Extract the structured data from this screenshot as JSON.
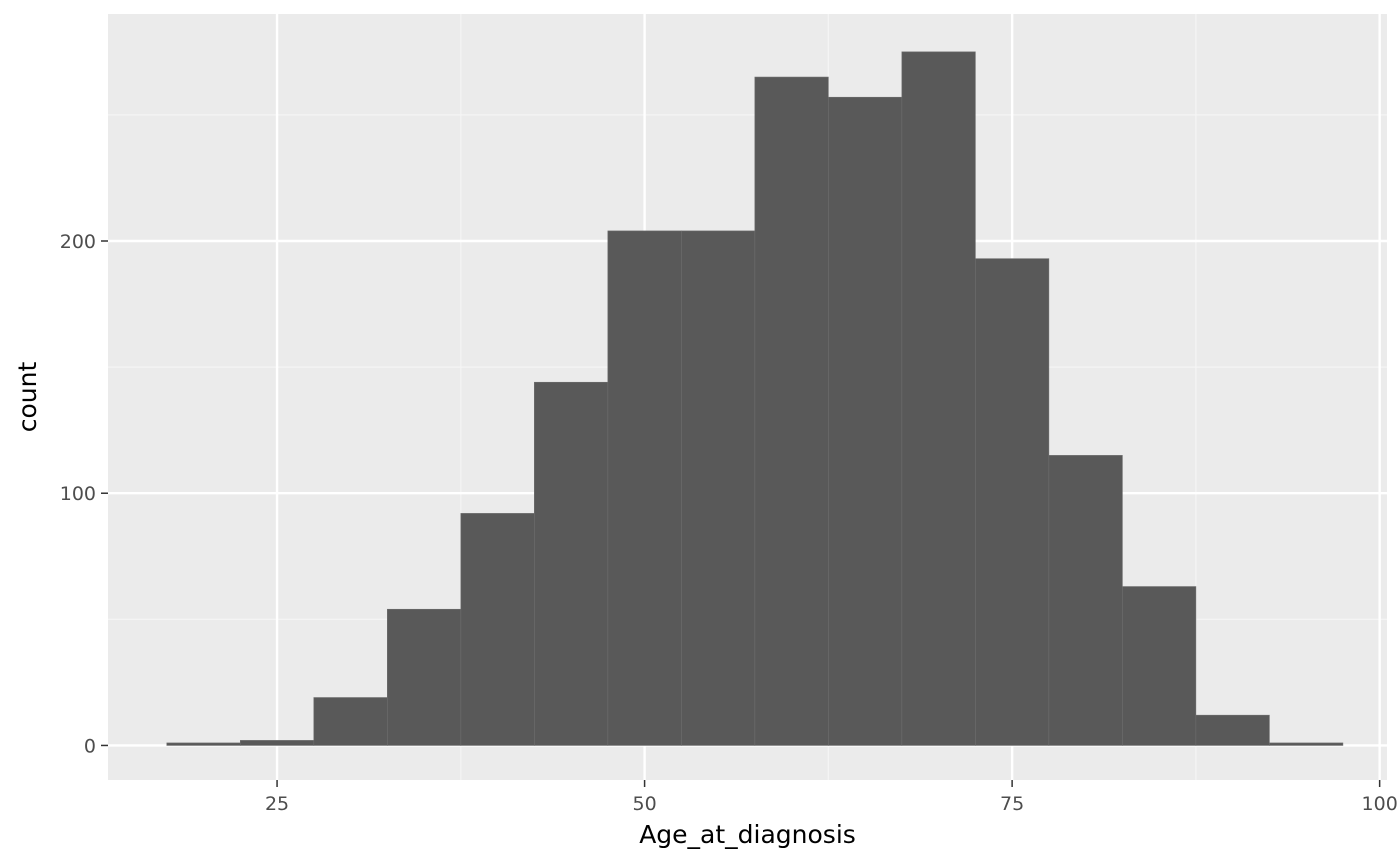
{
  "chart_data": {
    "type": "bar",
    "subtype": "histogram",
    "xlabel": "Age_at_diagnosis",
    "ylabel": "count",
    "x_ticks": [
      25,
      50,
      75,
      100
    ],
    "y_ticks": [
      0,
      100,
      200
    ],
    "xlim": [
      13.5,
      100.5
    ],
    "ylim": [
      -13.7,
      290
    ],
    "bin_width": 5,
    "bins": [
      {
        "start": 17.5,
        "end": 22.5,
        "count": 1
      },
      {
        "start": 22.5,
        "end": 27.5,
        "count": 2
      },
      {
        "start": 27.5,
        "end": 32.5,
        "count": 19
      },
      {
        "start": 32.5,
        "end": 37.5,
        "count": 54
      },
      {
        "start": 37.5,
        "end": 42.5,
        "count": 92
      },
      {
        "start": 42.5,
        "end": 47.5,
        "count": 144
      },
      {
        "start": 47.5,
        "end": 52.5,
        "count": 204
      },
      {
        "start": 52.5,
        "end": 57.5,
        "count": 204
      },
      {
        "start": 57.5,
        "end": 62.5,
        "count": 265
      },
      {
        "start": 62.5,
        "end": 67.5,
        "count": 257
      },
      {
        "start": 67.5,
        "end": 72.5,
        "count": 275
      },
      {
        "start": 72.5,
        "end": 77.5,
        "count": 193
      },
      {
        "start": 77.5,
        "end": 82.5,
        "count": 115
      },
      {
        "start": 82.5,
        "end": 87.5,
        "count": 63
      },
      {
        "start": 87.5,
        "end": 92.5,
        "count": 12
      },
      {
        "start": 92.5,
        "end": 97.5,
        "count": 1
      }
    ],
    "grid": true,
    "legend": "none"
  },
  "colors": {
    "panel_background": "#ebebeb",
    "grid_major": "#ffffff",
    "grid_minor": "#f5f5f5",
    "bar_fill": "#595959",
    "bar_outline": "#6e6e6e",
    "tick_mark": "#333333",
    "tick_label": "#4d4d4d",
    "axis_title": "#000000"
  }
}
